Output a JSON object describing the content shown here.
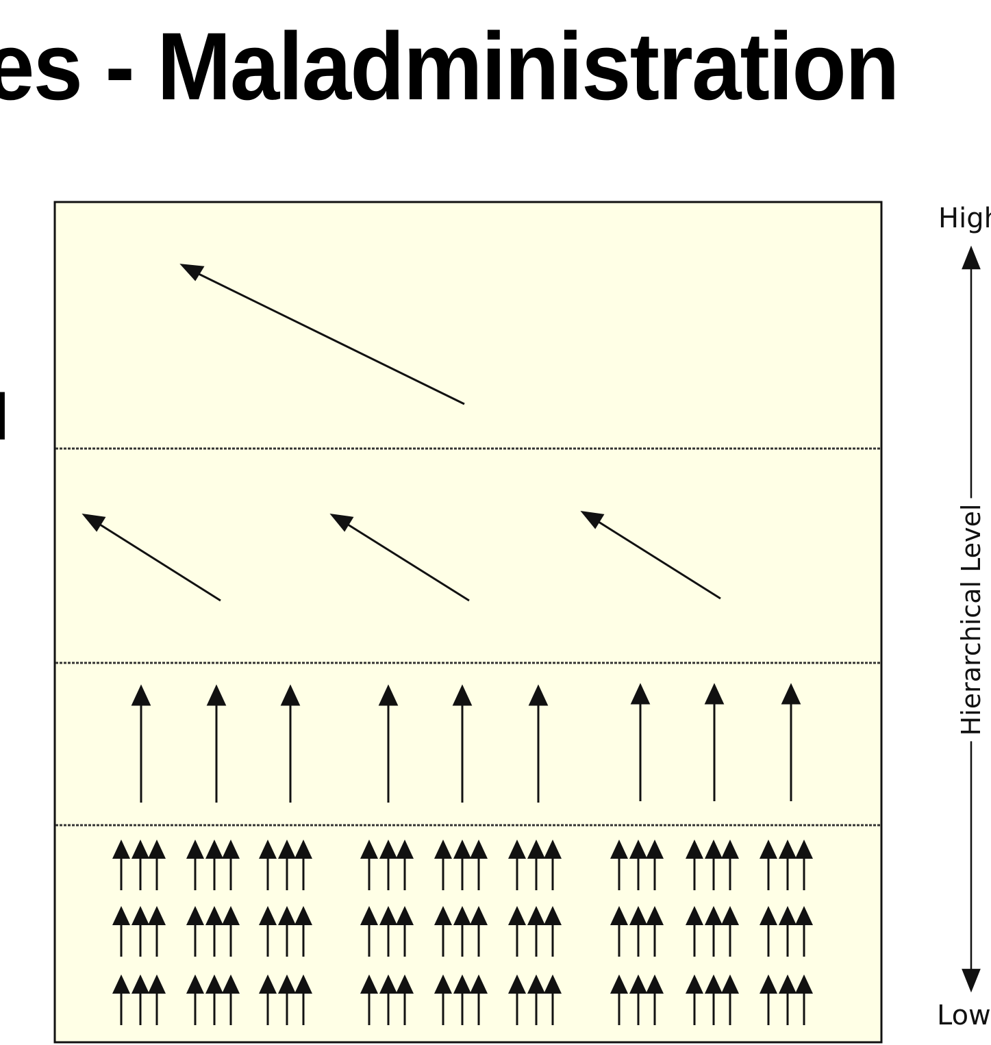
{
  "slide": {
    "title": "es - Maladministration",
    "partial_left_text": "l"
  },
  "diagram": {
    "background_color": "#FFFFE6",
    "border_color": "#000000",
    "bands": [
      {
        "level": 4,
        "description": "single large diagonal arrow pointing up-left",
        "arrow_count": 1
      },
      {
        "level": 3,
        "description": "three diagonal arrows pointing up-left",
        "arrow_count": 3
      },
      {
        "level": 2,
        "description": "nine vertical arrows pointing up",
        "arrow_count": 9
      },
      {
        "level": 1,
        "description": "3 rows x 9 clusters of three small upward arrows",
        "arrow_count": 81
      }
    ]
  },
  "axis": {
    "high_label": "High",
    "low_label": "Low",
    "title": "Hierarchical Level"
  }
}
